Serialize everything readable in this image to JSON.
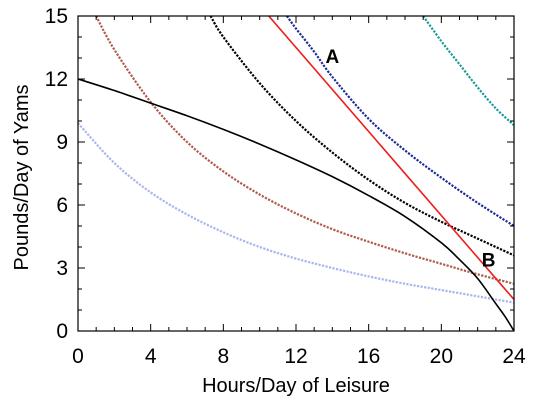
{
  "chart_data": {
    "type": "line",
    "title": "",
    "xlabel": "Hours/Day of Leisure",
    "ylabel": "Pounds/Day of Yams",
    "xlim": [
      0,
      24
    ],
    "ylim": [
      0,
      15
    ],
    "x_ticks": [
      "0",
      "4",
      "8",
      "12",
      "16",
      "20",
      "24"
    ],
    "y_ticks": [
      "0",
      "3",
      "6",
      "9",
      "12",
      "15"
    ],
    "grid": false,
    "legend": "none",
    "annotations": [
      {
        "text": "A",
        "x": 14.0,
        "y": 13.1
      },
      {
        "text": "B",
        "x": 22.6,
        "y": 3.4
      }
    ],
    "series": [
      {
        "color": "#aab4ee",
        "style": "dotted-curve",
        "x": [
          0,
          2,
          4,
          6,
          8,
          10,
          12,
          14,
          16,
          18,
          20,
          22,
          24
        ],
        "y": [
          9.9,
          8.0,
          6.6,
          5.55,
          4.7,
          4.0,
          3.45,
          3.0,
          2.6,
          2.25,
          1.95,
          1.65,
          1.35
        ]
      },
      {
        "color": "#b05a4a",
        "style": "dotted-curve",
        "x": [
          1,
          2,
          4,
          6,
          8,
          10,
          12,
          14,
          16,
          18,
          20,
          22,
          24
        ],
        "y": [
          15.0,
          13.4,
          10.9,
          9.0,
          7.6,
          6.5,
          5.6,
          4.85,
          4.25,
          3.7,
          3.2,
          2.7,
          2.25
        ]
      },
      {
        "color": "#000000",
        "style": "solid",
        "x": [
          0,
          2,
          4,
          6,
          8,
          10,
          12,
          14,
          16,
          18,
          20,
          21,
          22,
          23,
          23.5,
          24
        ],
        "y": [
          12.0,
          11.45,
          10.85,
          10.25,
          9.6,
          8.9,
          8.15,
          7.35,
          6.45,
          5.45,
          4.2,
          3.4,
          2.5,
          1.3,
          0.7,
          0.0
        ]
      },
      {
        "color": "#000000",
        "style": "dotted-curve",
        "x": [
          7.3,
          8,
          10,
          12,
          14,
          16,
          18,
          20,
          22,
          24
        ],
        "y": [
          15.0,
          14.0,
          11.8,
          10.0,
          8.5,
          7.2,
          6.1,
          5.2,
          4.4,
          3.6
        ]
      },
      {
        "color": "#1c2a9a",
        "style": "dotted-curve",
        "x": [
          11.5,
          12,
          13,
          14,
          16,
          18,
          20,
          22,
          24
        ],
        "y": [
          15.0,
          14.4,
          13.3,
          12.1,
          10.1,
          8.6,
          7.3,
          6.1,
          5.0
        ]
      },
      {
        "color": "#1a9a96",
        "style": "dotted-curve",
        "x": [
          19.0,
          20,
          21,
          22,
          23,
          24
        ],
        "y": [
          15.0,
          13.8,
          12.7,
          11.6,
          10.6,
          9.8
        ]
      },
      {
        "color": "#ee1c1c",
        "style": "solid",
        "x": [
          10.5,
          24
        ],
        "y": [
          15.0,
          1.5
        ]
      }
    ]
  }
}
